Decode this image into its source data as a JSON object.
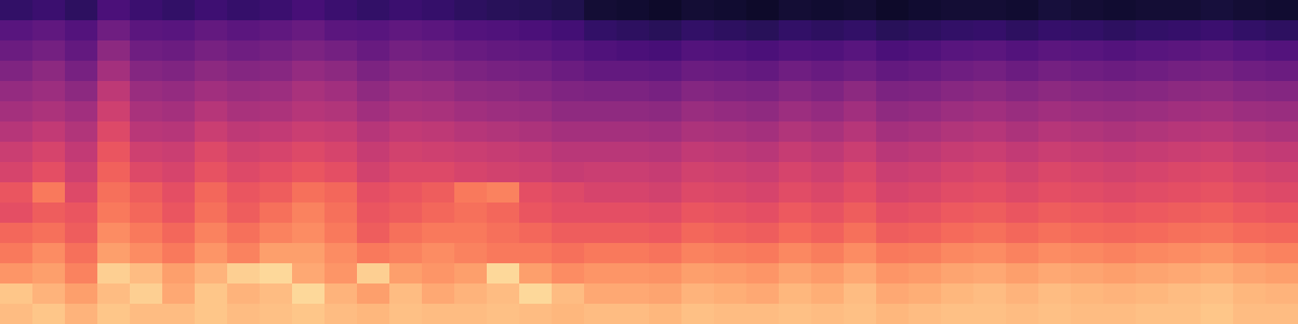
{
  "chart_data": {
    "type": "heatmap",
    "color": "magma",
    "tick_labels": false,
    "value_range": [
      0,
      1
    ],
    "cells": [
      [
        0.18,
        0.2,
        0.17,
        0.24,
        0.2,
        0.18,
        0.21,
        0.19,
        0.2,
        0.23,
        0.2,
        0.18,
        0.2,
        0.19,
        0.17,
        0.16,
        0.15,
        0.14,
        0.1,
        0.09,
        0.08,
        0.1,
        0.09,
        0.08,
        0.1,
        0.09,
        0.1,
        0.08,
        0.09,
        0.1,
        0.1,
        0.09,
        0.11,
        0.1,
        0.09,
        0.1,
        0.1,
        0.11,
        0.1,
        0.09
      ],
      [
        0.27,
        0.29,
        0.26,
        0.33,
        0.28,
        0.27,
        0.3,
        0.28,
        0.29,
        0.31,
        0.28,
        0.27,
        0.29,
        0.28,
        0.26,
        0.25,
        0.24,
        0.22,
        0.18,
        0.17,
        0.16,
        0.18,
        0.17,
        0.16,
        0.18,
        0.17,
        0.18,
        0.16,
        0.17,
        0.18,
        0.19,
        0.17,
        0.19,
        0.18,
        0.17,
        0.18,
        0.19,
        0.2,
        0.18,
        0.17
      ],
      [
        0.32,
        0.34,
        0.3,
        0.4,
        0.33,
        0.32,
        0.35,
        0.33,
        0.34,
        0.36,
        0.34,
        0.31,
        0.34,
        0.33,
        0.31,
        0.3,
        0.29,
        0.27,
        0.25,
        0.24,
        0.23,
        0.26,
        0.25,
        0.24,
        0.26,
        0.25,
        0.27,
        0.24,
        0.25,
        0.27,
        0.28,
        0.26,
        0.28,
        0.27,
        0.26,
        0.27,
        0.28,
        0.29,
        0.27,
        0.26
      ],
      [
        0.37,
        0.4,
        0.35,
        0.46,
        0.38,
        0.37,
        0.4,
        0.38,
        0.39,
        0.42,
        0.4,
        0.36,
        0.39,
        0.38,
        0.36,
        0.35,
        0.34,
        0.32,
        0.3,
        0.3,
        0.29,
        0.32,
        0.31,
        0.3,
        0.33,
        0.31,
        0.33,
        0.3,
        0.31,
        0.33,
        0.34,
        0.32,
        0.34,
        0.33,
        0.32,
        0.33,
        0.34,
        0.35,
        0.33,
        0.32
      ],
      [
        0.42,
        0.44,
        0.4,
        0.52,
        0.43,
        0.42,
        0.45,
        0.43,
        0.44,
        0.47,
        0.45,
        0.41,
        0.44,
        0.43,
        0.41,
        0.4,
        0.39,
        0.37,
        0.36,
        0.36,
        0.35,
        0.38,
        0.37,
        0.36,
        0.39,
        0.37,
        0.4,
        0.36,
        0.37,
        0.39,
        0.4,
        0.38,
        0.4,
        0.39,
        0.38,
        0.39,
        0.4,
        0.41,
        0.39,
        0.38
      ],
      [
        0.46,
        0.48,
        0.45,
        0.56,
        0.47,
        0.46,
        0.5,
        0.47,
        0.48,
        0.5,
        0.49,
        0.45,
        0.48,
        0.47,
        0.45,
        0.44,
        0.43,
        0.41,
        0.41,
        0.41,
        0.4,
        0.43,
        0.42,
        0.41,
        0.44,
        0.42,
        0.45,
        0.41,
        0.42,
        0.44,
        0.45,
        0.43,
        0.45,
        0.44,
        0.43,
        0.44,
        0.45,
        0.46,
        0.44,
        0.43
      ],
      [
        0.5,
        0.53,
        0.49,
        0.6,
        0.51,
        0.5,
        0.55,
        0.52,
        0.53,
        0.55,
        0.54,
        0.5,
        0.53,
        0.52,
        0.5,
        0.49,
        0.48,
        0.46,
        0.46,
        0.46,
        0.45,
        0.48,
        0.47,
        0.46,
        0.49,
        0.47,
        0.5,
        0.46,
        0.47,
        0.49,
        0.5,
        0.48,
        0.5,
        0.49,
        0.48,
        0.49,
        0.5,
        0.51,
        0.49,
        0.48
      ],
      [
        0.55,
        0.58,
        0.53,
        0.64,
        0.56,
        0.55,
        0.6,
        0.57,
        0.58,
        0.6,
        0.58,
        0.54,
        0.57,
        0.56,
        0.55,
        0.54,
        0.53,
        0.51,
        0.51,
        0.51,
        0.5,
        0.53,
        0.52,
        0.51,
        0.54,
        0.52,
        0.55,
        0.51,
        0.52,
        0.54,
        0.55,
        0.53,
        0.55,
        0.54,
        0.53,
        0.54,
        0.55,
        0.56,
        0.54,
        0.53
      ],
      [
        0.58,
        0.62,
        0.56,
        0.67,
        0.6,
        0.58,
        0.63,
        0.6,
        0.62,
        0.64,
        0.62,
        0.57,
        0.6,
        0.6,
        0.58,
        0.57,
        0.56,
        0.54,
        0.55,
        0.55,
        0.54,
        0.57,
        0.56,
        0.55,
        0.58,
        0.56,
        0.59,
        0.55,
        0.56,
        0.58,
        0.59,
        0.57,
        0.59,
        0.58,
        0.57,
        0.58,
        0.59,
        0.6,
        0.58,
        0.57
      ],
      [
        0.64,
        0.72,
        0.6,
        0.7,
        0.66,
        0.62,
        0.68,
        0.64,
        0.66,
        0.7,
        0.68,
        0.62,
        0.64,
        0.66,
        0.72,
        0.74,
        0.62,
        0.6,
        0.58,
        0.58,
        0.57,
        0.6,
        0.59,
        0.58,
        0.61,
        0.59,
        0.62,
        0.58,
        0.59,
        0.61,
        0.62,
        0.6,
        0.62,
        0.61,
        0.6,
        0.61,
        0.62,
        0.63,
        0.61,
        0.6
      ],
      [
        0.62,
        0.66,
        0.64,
        0.72,
        0.68,
        0.64,
        0.7,
        0.66,
        0.7,
        0.74,
        0.7,
        0.64,
        0.66,
        0.68,
        0.7,
        0.68,
        0.64,
        0.62,
        0.62,
        0.62,
        0.61,
        0.64,
        0.63,
        0.62,
        0.65,
        0.63,
        0.66,
        0.62,
        0.63,
        0.65,
        0.66,
        0.64,
        0.66,
        0.65,
        0.64,
        0.65,
        0.66,
        0.67,
        0.65,
        0.64
      ],
      [
        0.68,
        0.7,
        0.66,
        0.76,
        0.72,
        0.68,
        0.74,
        0.7,
        0.74,
        0.76,
        0.72,
        0.66,
        0.7,
        0.72,
        0.72,
        0.7,
        0.68,
        0.66,
        0.66,
        0.66,
        0.65,
        0.68,
        0.67,
        0.66,
        0.69,
        0.67,
        0.7,
        0.66,
        0.67,
        0.69,
        0.7,
        0.68,
        0.7,
        0.69,
        0.68,
        0.69,
        0.7,
        0.71,
        0.69,
        0.68
      ],
      [
        0.72,
        0.76,
        0.7,
        0.8,
        0.76,
        0.72,
        0.78,
        0.74,
        0.8,
        0.8,
        0.76,
        0.72,
        0.74,
        0.76,
        0.74,
        0.72,
        0.72,
        0.7,
        0.72,
        0.72,
        0.71,
        0.74,
        0.73,
        0.72,
        0.75,
        0.73,
        0.76,
        0.72,
        0.73,
        0.75,
        0.76,
        0.74,
        0.76,
        0.75,
        0.74,
        0.75,
        0.76,
        0.77,
        0.75,
        0.74
      ],
      [
        0.78,
        0.8,
        0.74,
        0.9,
        0.86,
        0.8,
        0.84,
        0.9,
        0.92,
        0.82,
        0.78,
        0.9,
        0.8,
        0.78,
        0.8,
        0.92,
        0.8,
        0.76,
        0.78,
        0.78,
        0.77,
        0.8,
        0.79,
        0.78,
        0.81,
        0.79,
        0.82,
        0.78,
        0.79,
        0.81,
        0.82,
        0.8,
        0.82,
        0.81,
        0.8,
        0.81,
        0.82,
        0.83,
        0.81,
        0.8
      ],
      [
        0.88,
        0.84,
        0.8,
        0.86,
        0.9,
        0.82,
        0.88,
        0.84,
        0.86,
        0.92,
        0.84,
        0.8,
        0.86,
        0.82,
        0.84,
        0.86,
        0.92,
        0.86,
        0.82,
        0.82,
        0.81,
        0.84,
        0.83,
        0.82,
        0.85,
        0.83,
        0.86,
        0.82,
        0.83,
        0.85,
        0.86,
        0.84,
        0.86,
        0.85,
        0.84,
        0.85,
        0.86,
        0.87,
        0.85,
        0.84
      ],
      [
        0.86,
        0.88,
        0.84,
        0.88,
        0.86,
        0.86,
        0.88,
        0.86,
        0.87,
        0.88,
        0.86,
        0.85,
        0.87,
        0.86,
        0.86,
        0.87,
        0.86,
        0.85,
        0.86,
        0.86,
        0.85,
        0.87,
        0.86,
        0.86,
        0.87,
        0.86,
        0.87,
        0.85,
        0.86,
        0.87,
        0.87,
        0.86,
        0.87,
        0.86,
        0.86,
        0.87,
        0.87,
        0.88,
        0.86,
        0.86
      ]
    ]
  }
}
